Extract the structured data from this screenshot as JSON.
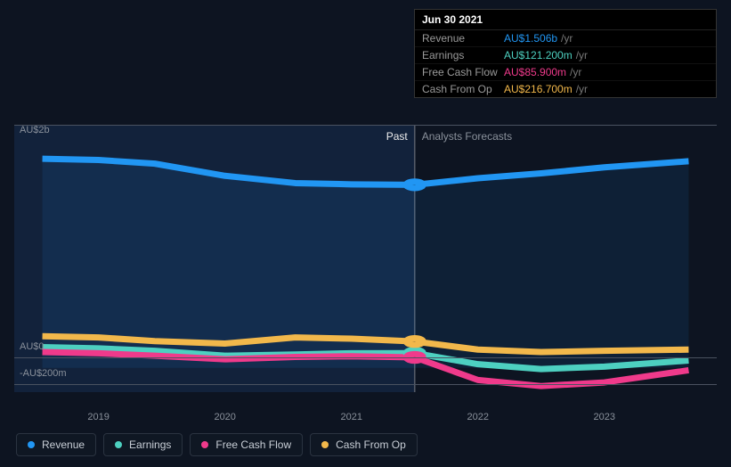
{
  "chart": {
    "type": "line",
    "background_color": "#0d1421",
    "past_shade_color": "rgba(30,60,110,0.35)",
    "grid_color": "#4a5260",
    "hover_line_color": "#555c68",
    "period_labels": {
      "past": "Past",
      "forecast": "Analysts Forecasts"
    },
    "x": {
      "ticks": [
        "2019",
        "2020",
        "2021",
        "2022",
        "2023"
      ],
      "tick_positions": [
        0.12,
        0.3,
        0.48,
        0.66,
        0.84
      ],
      "hover_x": 0.57
    },
    "y": {
      "ticks": [
        {
          "label": "AU$2b",
          "pos": 0.06
        },
        {
          "label": "AU$0",
          "pos": 0.87
        },
        {
          "label": "-AU$200m",
          "pos": 0.97
        }
      ],
      "range_min_m": -200,
      "range_max_m": 2000
    },
    "series": [
      {
        "key": "revenue",
        "label": "Revenue",
        "color": "#2196f3",
        "fill": "rgba(33,150,243,0.10)",
        "x": [
          0.04,
          0.12,
          0.2,
          0.3,
          0.4,
          0.48,
          0.57,
          0.66,
          0.75,
          0.84,
          0.96
        ],
        "ym": [
          1720,
          1710,
          1680,
          1580,
          1520,
          1510,
          1506,
          1560,
          1600,
          1650,
          1700
        ]
      },
      {
        "key": "earnings",
        "label": "Earnings",
        "color": "#4dd0c0",
        "fill": "none",
        "x": [
          0.04,
          0.12,
          0.2,
          0.3,
          0.4,
          0.48,
          0.57,
          0.66,
          0.75,
          0.84,
          0.96
        ],
        "ym": [
          170,
          160,
          140,
          100,
          110,
          120,
          121,
          30,
          -10,
          10,
          60
        ]
      },
      {
        "key": "fcf",
        "label": "Free Cash Flow",
        "color": "#ef3a8b",
        "fill": "none",
        "x": [
          0.04,
          0.12,
          0.2,
          0.3,
          0.4,
          0.48,
          0.57,
          0.66,
          0.75,
          0.84,
          0.96
        ],
        "ym": [
          130,
          120,
          100,
          70,
          90,
          95,
          86,
          -100,
          -150,
          -120,
          -20
        ]
      },
      {
        "key": "cfo",
        "label": "Cash From Op",
        "color": "#f2b84b",
        "fill": "none",
        "x": [
          0.04,
          0.12,
          0.2,
          0.3,
          0.4,
          0.48,
          0.57,
          0.66,
          0.75,
          0.84,
          0.96
        ],
        "ym": [
          260,
          250,
          220,
          200,
          250,
          240,
          217,
          150,
          130,
          140,
          150
        ]
      }
    ],
    "hover_markers": [
      {
        "series": "revenue",
        "color": "#2196f3"
      },
      {
        "series": "cfo",
        "color": "#f2b84b"
      },
      {
        "series": "earnings",
        "color": "#4dd0c0"
      },
      {
        "series": "fcf",
        "color": "#ef3a8b"
      }
    ]
  },
  "tooltip": {
    "date": "Jun 30 2021",
    "rows": [
      {
        "label": "Revenue",
        "value": "AU$1.506b",
        "unit": "/yr",
        "color": "#2196f3"
      },
      {
        "label": "Earnings",
        "value": "AU$121.200m",
        "unit": "/yr",
        "color": "#4dd0c0"
      },
      {
        "label": "Free Cash Flow",
        "value": "AU$85.900m",
        "unit": "/yr",
        "color": "#ef3a8b"
      },
      {
        "label": "Cash From Op",
        "value": "AU$216.700m",
        "unit": "/yr",
        "color": "#f2b84b"
      }
    ]
  },
  "legend": [
    {
      "label": "Revenue",
      "color": "#2196f3"
    },
    {
      "label": "Earnings",
      "color": "#4dd0c0"
    },
    {
      "label": "Free Cash Flow",
      "color": "#ef3a8b"
    },
    {
      "label": "Cash From Op",
      "color": "#f2b84b"
    }
  ]
}
